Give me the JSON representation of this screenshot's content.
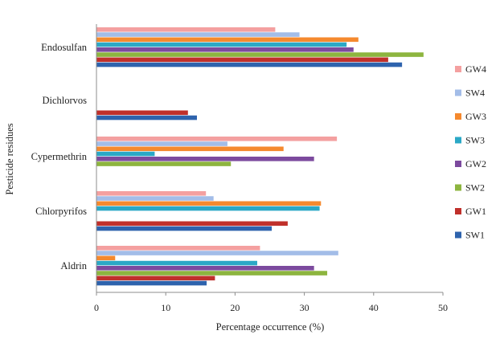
{
  "chart_data": {
    "type": "bar",
    "orientation": "horizontal",
    "title": "",
    "xlabel": "Percentage occurrence (%)",
    "ylabel": "Pesticide residues",
    "xlim": [
      0,
      50
    ],
    "xticks": [
      0,
      10,
      20,
      30,
      40,
      50
    ],
    "grid": false,
    "legend_position": "right",
    "categories": [
      "Endosulfan",
      "Dichlorvos",
      "Cypermethrin",
      "Chlorpyrifos",
      "Aldrin"
    ],
    "series": [
      {
        "name": "GW4",
        "color": "#f4a0a0",
        "values": [
          25.8,
          null,
          34.7,
          15.8,
          23.6
        ]
      },
      {
        "name": "SW4",
        "color": "#a3bde8",
        "values": [
          29.3,
          null,
          18.9,
          16.9,
          34.9
        ]
      },
      {
        "name": "GW3",
        "color": "#f5892e",
        "values": [
          37.8,
          null,
          27.0,
          32.4,
          2.7
        ]
      },
      {
        "name": "SW3",
        "color": "#2ba8c6",
        "values": [
          36.1,
          null,
          8.4,
          32.2,
          23.2
        ]
      },
      {
        "name": "GW2",
        "color": "#7c4a9e",
        "values": [
          37.1,
          null,
          31.4,
          null,
          31.4
        ]
      },
      {
        "name": "SW2",
        "color": "#8db53f",
        "values": [
          47.2,
          null,
          19.4,
          null,
          33.3
        ]
      },
      {
        "name": "GW1",
        "color": "#c0302b",
        "values": [
          42.1,
          13.2,
          null,
          27.6,
          17.1
        ]
      },
      {
        "name": "SW1",
        "color": "#2e63ad",
        "values": [
          44.1,
          14.5,
          null,
          25.3,
          15.9
        ]
      }
    ],
    "legend_order": [
      "GW4",
      "SW4",
      "GW3",
      "SW3",
      "GW2",
      "SW2",
      "GW1",
      "SW1"
    ]
  }
}
